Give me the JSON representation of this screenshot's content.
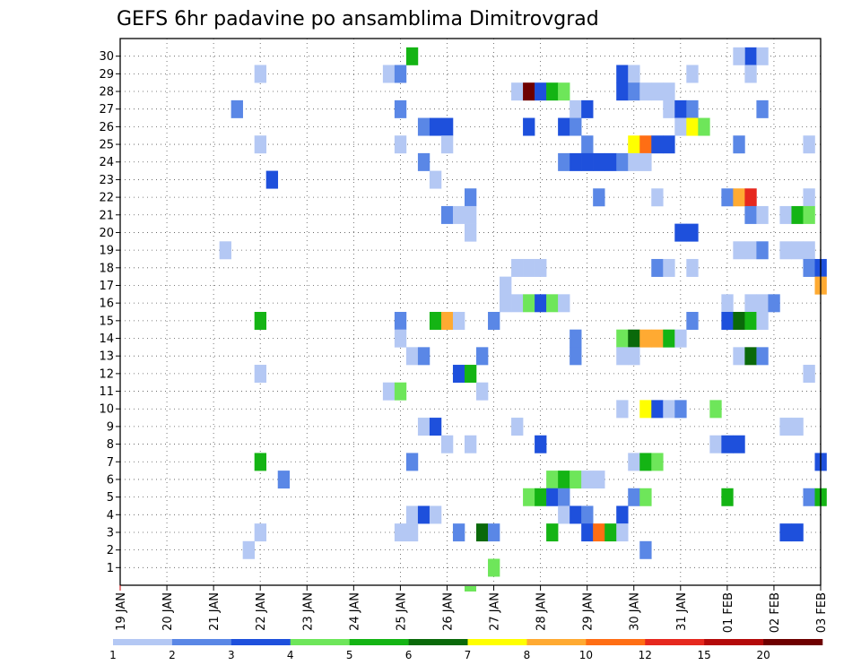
{
  "chart_data": {
    "type": "heatmap",
    "title": "GEFS 6hr padavine po ansamblima Dimitrovgrad",
    "xlabel": "",
    "ylabel": "",
    "x_ticks": [
      "19 JAN",
      "20 JAN",
      "21 JAN",
      "22 JAN",
      "23 JAN",
      "24 JAN",
      "25 JAN",
      "26 JAN",
      "27 JAN",
      "28 JAN",
      "29 JAN",
      "30 JAN",
      "31 JAN",
      "01 FEB",
      "02 FEB",
      "03 FEB"
    ],
    "y_ticks": [
      1,
      2,
      3,
      4,
      5,
      6,
      7,
      8,
      9,
      10,
      11,
      12,
      13,
      14,
      15,
      16,
      17,
      18,
      19,
      20,
      21,
      22,
      23,
      24,
      25,
      26,
      27,
      28,
      29,
      30
    ],
    "x_range_days": [
      0,
      15
    ],
    "time_step_hours": 6,
    "grid": true,
    "colorbar": {
      "placement": "bottom",
      "levels": [
        "1",
        "2",
        "3",
        "4",
        "5",
        "6",
        "7",
        "8",
        "10",
        "12",
        "15",
        "20"
      ],
      "colors": [
        "#b4c8f4",
        "#5a87e6",
        "#1e50dc",
        "#6ee65a",
        "#14b414",
        "#0a690a",
        "#ffff00",
        "#ffaa32",
        "#ff6e14",
        "#e6281e",
        "#b40a0a",
        "#6e0000"
      ]
    },
    "palette": [
      "#b4c8f4",
      "#5a87e6",
      "#1e50dc",
      "#6ee65a",
      "#14b414",
      "#0a690a",
      "#ffff00",
      "#ffaa32",
      "#ff6e14",
      "#e6281e",
      "#b40a0a",
      "#6e0000"
    ],
    "cells_note_unused": "",
    "cells": [
      [
        30,
        6.25,
        4
      ],
      [
        30,
        13.5,
        2
      ],
      [
        30,
        13.25,
        0
      ],
      [
        30,
        13.75,
        0
      ],
      [
        29,
        3.0,
        0
      ],
      [
        29,
        5.75,
        0
      ],
      [
        29,
        6.0,
        1
      ],
      [
        29,
        10.75,
        2
      ],
      [
        29,
        11.0,
        0
      ],
      [
        29,
        12.25,
        0
      ],
      [
        29,
        13.5,
        0
      ],
      [
        28,
        8.5,
        0
      ],
      [
        28,
        8.75,
        11
      ],
      [
        28,
        9.0,
        2
      ],
      [
        28,
        9.25,
        4
      ],
      [
        28,
        9.5,
        3
      ],
      [
        28,
        10.75,
        2
      ],
      [
        28,
        11.0,
        1
      ],
      [
        28,
        11.25,
        0
      ],
      [
        28,
        11.5,
        0
      ],
      [
        28,
        11.75,
        0
      ],
      [
        27,
        2.5,
        1
      ],
      [
        27,
        6.0,
        1
      ],
      [
        27,
        9.75,
        0
      ],
      [
        27,
        10.0,
        2
      ],
      [
        27,
        11.75,
        0
      ],
      [
        27,
        12.0,
        2
      ],
      [
        27,
        12.25,
        1
      ],
      [
        27,
        13.75,
        1
      ],
      [
        26,
        6.5,
        1
      ],
      [
        26,
        6.75,
        2
      ],
      [
        26,
        7.0,
        2
      ],
      [
        26,
        8.75,
        2
      ],
      [
        26,
        9.5,
        2
      ],
      [
        26,
        9.75,
        1
      ],
      [
        26,
        12.0,
        0
      ],
      [
        26,
        12.25,
        6
      ],
      [
        26,
        12.5,
        3
      ],
      [
        25,
        3.0,
        0
      ],
      [
        25,
        6.0,
        0
      ],
      [
        25,
        7.0,
        0
      ],
      [
        25,
        10.0,
        1
      ],
      [
        25,
        11.0,
        6
      ],
      [
        25,
        11.25,
        8
      ],
      [
        25,
        11.5,
        2
      ],
      [
        25,
        11.75,
        2
      ],
      [
        25,
        13.25,
        1
      ],
      [
        25,
        14.75,
        0
      ],
      [
        24,
        6.5,
        1
      ],
      [
        24,
        9.5,
        1
      ],
      [
        24,
        9.75,
        2
      ],
      [
        24,
        10.0,
        2
      ],
      [
        24,
        10.25,
        2
      ],
      [
        24,
        10.5,
        2
      ],
      [
        24,
        10.75,
        1
      ],
      [
        24,
        11.0,
        0
      ],
      [
        24,
        11.25,
        0
      ],
      [
        23,
        3.25,
        2
      ],
      [
        23,
        6.75,
        0
      ],
      [
        22,
        7.5,
        1
      ],
      [
        22,
        10.25,
        1
      ],
      [
        22,
        11.5,
        0
      ],
      [
        22,
        13.0,
        1
      ],
      [
        22,
        13.25,
        7
      ],
      [
        22,
        13.5,
        9
      ],
      [
        22,
        14.75,
        0
      ],
      [
        21,
        7.0,
        1
      ],
      [
        21,
        7.25,
        0
      ],
      [
        21,
        7.5,
        0
      ],
      [
        21,
        13.5,
        1
      ],
      [
        21,
        13.75,
        0
      ],
      [
        21,
        14.25,
        0
      ],
      [
        21,
        14.5,
        4
      ],
      [
        21,
        14.75,
        3
      ],
      [
        20,
        7.5,
        0
      ],
      [
        20,
        12.0,
        2
      ],
      [
        20,
        12.25,
        2
      ],
      [
        19,
        2.25,
        0
      ],
      [
        19,
        13.25,
        0
      ],
      [
        19,
        13.5,
        0
      ],
      [
        19,
        13.75,
        1
      ],
      [
        19,
        14.25,
        0
      ],
      [
        19,
        14.5,
        0
      ],
      [
        19,
        14.75,
        0
      ],
      [
        18,
        8.5,
        0
      ],
      [
        18,
        8.75,
        0
      ],
      [
        18,
        9.0,
        0
      ],
      [
        18,
        11.5,
        1
      ],
      [
        18,
        11.75,
        0
      ],
      [
        18,
        12.25,
        0
      ],
      [
        18,
        14.75,
        1
      ],
      [
        18,
        15.0,
        2
      ],
      [
        17,
        8.25,
        0
      ],
      [
        17,
        15.0,
        7
      ],
      [
        16,
        8.25,
        0
      ],
      [
        16,
        8.5,
        0
      ],
      [
        16,
        8.75,
        3
      ],
      [
        16,
        9.0,
        2
      ],
      [
        16,
        9.25,
        3
      ],
      [
        16,
        9.5,
        0
      ],
      [
        16,
        13.0,
        0
      ],
      [
        16,
        13.5,
        0
      ],
      [
        16,
        13.75,
        0
      ],
      [
        16,
        14.0,
        1
      ],
      [
        15,
        3.0,
        4
      ],
      [
        15,
        6.0,
        1
      ],
      [
        15,
        6.75,
        4
      ],
      [
        15,
        7.0,
        7
      ],
      [
        15,
        7.25,
        0
      ],
      [
        15,
        8.0,
        1
      ],
      [
        15,
        12.25,
        1
      ],
      [
        15,
        13.0,
        2
      ],
      [
        15,
        13.25,
        5
      ],
      [
        15,
        13.5,
        4
      ],
      [
        15,
        13.75,
        0
      ],
      [
        14,
        6.0,
        0
      ],
      [
        14,
        9.75,
        1
      ],
      [
        14,
        10.75,
        3
      ],
      [
        14,
        11.0,
        5
      ],
      [
        14,
        11.25,
        7
      ],
      [
        14,
        11.5,
        7
      ],
      [
        14,
        11.75,
        4
      ],
      [
        14,
        12.0,
        0
      ],
      [
        13,
        6.25,
        0
      ],
      [
        13,
        6.5,
        1
      ],
      [
        13,
        7.75,
        1
      ],
      [
        13,
        9.75,
        1
      ],
      [
        13,
        10.75,
        0
      ],
      [
        13,
        11.0,
        0
      ],
      [
        13,
        13.25,
        0
      ],
      [
        13,
        13.5,
        5
      ],
      [
        13,
        13.75,
        1
      ],
      [
        12,
        3.0,
        0
      ],
      [
        12,
        7.25,
        2
      ],
      [
        12,
        7.5,
        4
      ],
      [
        12,
        14.75,
        0
      ],
      [
        11,
        5.75,
        0
      ],
      [
        11,
        6.0,
        3
      ],
      [
        11,
        7.75,
        0
      ],
      [
        10,
        10.75,
        0
      ],
      [
        10,
        11.25,
        6
      ],
      [
        10,
        11.5,
        2
      ],
      [
        10,
        11.75,
        0
      ],
      [
        10,
        12.0,
        1
      ],
      [
        10,
        12.75,
        3
      ],
      [
        9,
        6.5,
        0
      ],
      [
        9,
        6.75,
        2
      ],
      [
        9,
        8.5,
        0
      ],
      [
        9,
        14.25,
        0
      ],
      [
        9,
        14.5,
        0
      ],
      [
        8,
        7.0,
        0
      ],
      [
        8,
        7.5,
        0
      ],
      [
        8,
        9.0,
        2
      ],
      [
        8,
        12.75,
        0
      ],
      [
        8,
        13.0,
        2
      ],
      [
        8,
        13.25,
        2
      ],
      [
        7,
        3.0,
        4
      ],
      [
        7,
        6.25,
        1
      ],
      [
        7,
        11.0,
        0
      ],
      [
        7,
        11.25,
        4
      ],
      [
        7,
        11.5,
        3
      ],
      [
        7,
        15.0,
        2
      ],
      [
        6,
        3.5,
        1
      ],
      [
        6,
        9.25,
        3
      ],
      [
        6,
        9.5,
        4
      ],
      [
        6,
        9.75,
        3
      ],
      [
        6,
        10.0,
        0
      ],
      [
        6,
        10.25,
        0
      ],
      [
        5,
        8.75,
        3
      ],
      [
        5,
        9.0,
        4
      ],
      [
        5,
        9.25,
        2
      ],
      [
        5,
        9.5,
        1
      ],
      [
        5,
        11.0,
        1
      ],
      [
        5,
        11.25,
        3
      ],
      [
        5,
        13.0,
        4
      ],
      [
        5,
        14.75,
        1
      ],
      [
        5,
        15.0,
        4
      ],
      [
        4,
        6.25,
        0
      ],
      [
        4,
        6.5,
        2
      ],
      [
        4,
        6.75,
        0
      ],
      [
        4,
        9.5,
        0
      ],
      [
        4,
        9.75,
        2
      ],
      [
        4,
        10.0,
        1
      ],
      [
        4,
        10.75,
        2
      ],
      [
        3,
        3.0,
        0
      ],
      [
        3,
        6.0,
        0
      ],
      [
        3,
        6.25,
        0
      ],
      [
        3,
        7.25,
        1
      ],
      [
        3,
        7.75,
        5
      ],
      [
        3,
        8.0,
        1
      ],
      [
        3,
        9.25,
        4
      ],
      [
        3,
        10.0,
        2
      ],
      [
        3,
        10.25,
        8
      ],
      [
        3,
        10.5,
        4
      ],
      [
        3,
        10.75,
        0
      ],
      [
        3,
        14.25,
        2
      ],
      [
        3,
        14.5,
        2
      ],
      [
        2,
        2.75,
        0
      ],
      [
        2,
        11.25,
        1
      ],
      [
        1,
        8.0,
        3
      ]
    ]
  }
}
